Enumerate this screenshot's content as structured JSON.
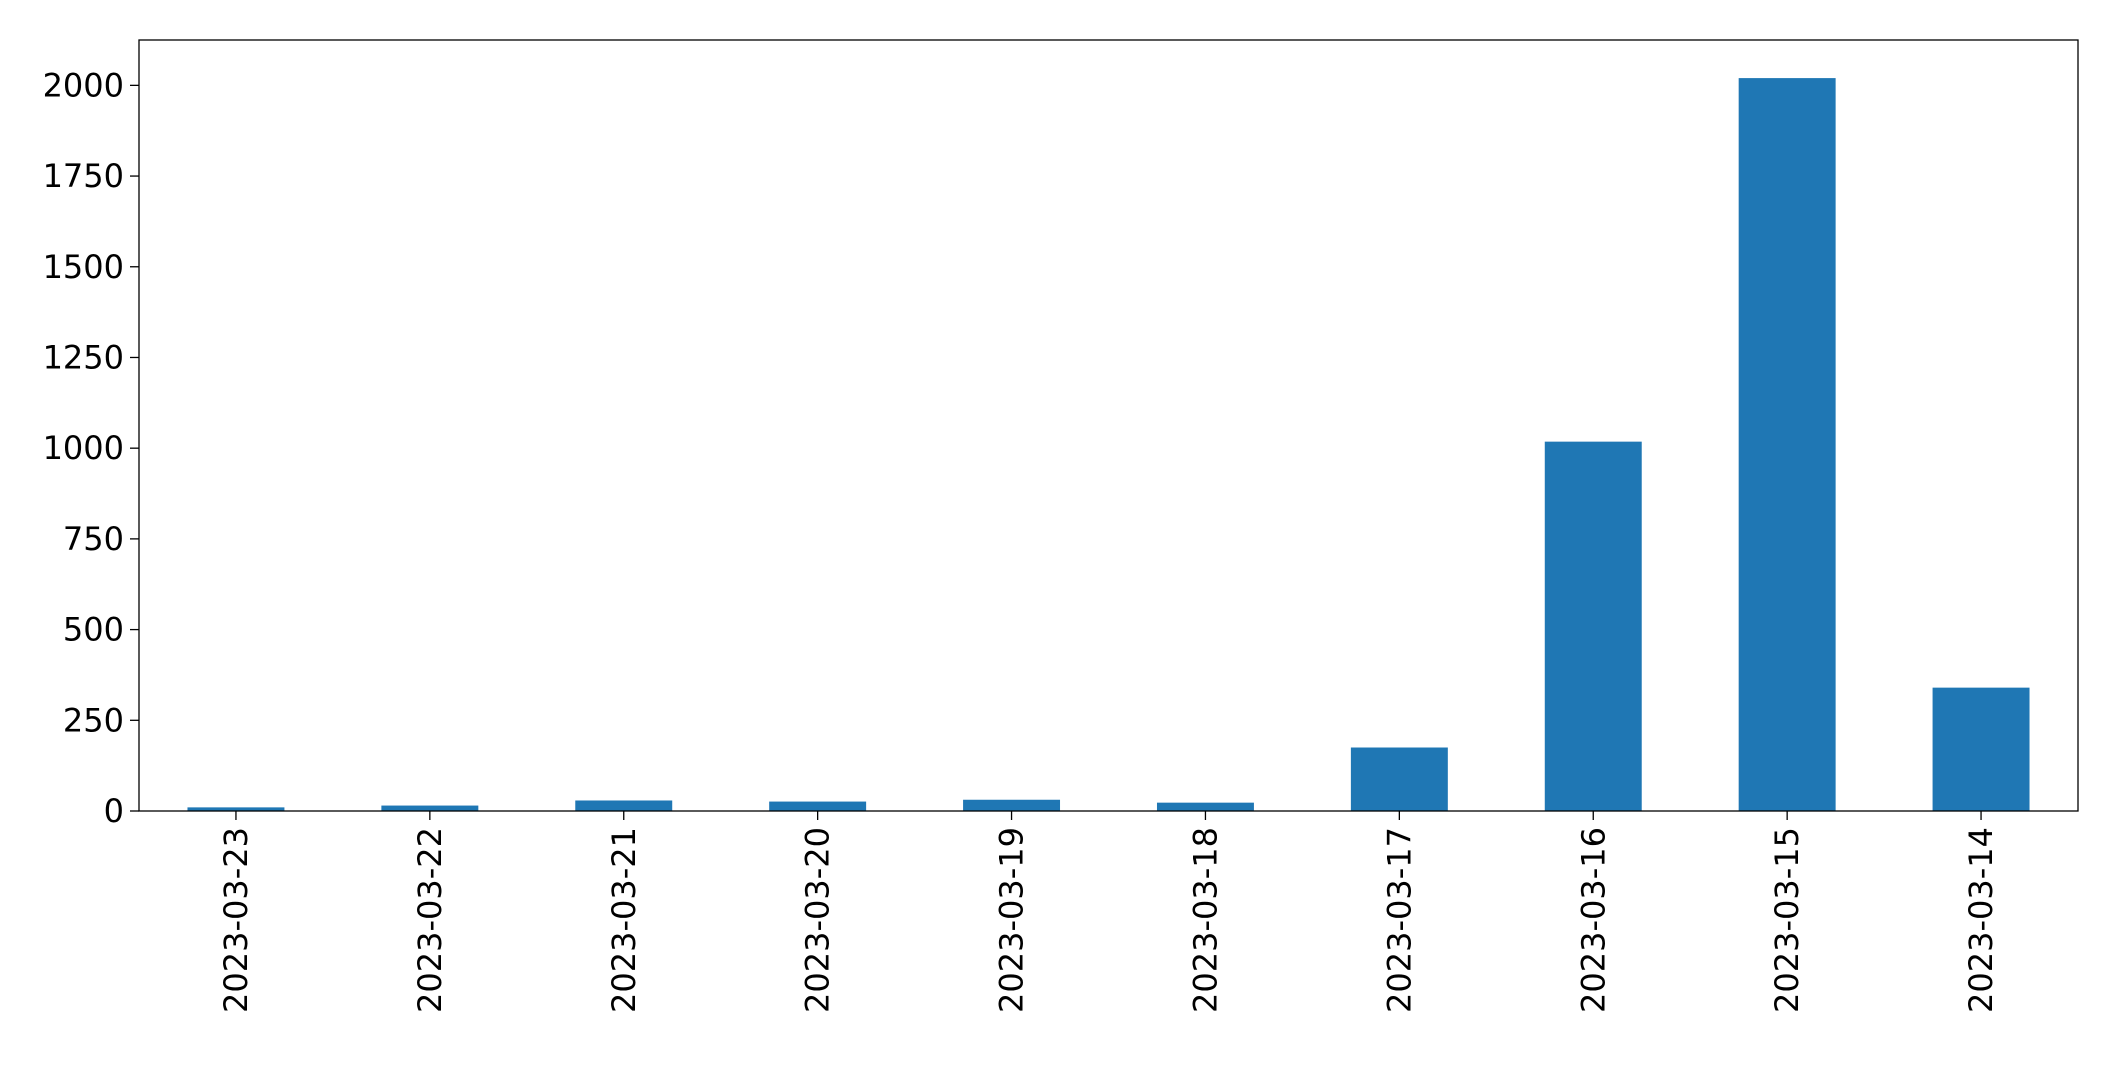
{
  "chart_data": {
    "type": "bar",
    "title": "",
    "xlabel": "",
    "ylabel": "",
    "categories": [
      "2023-03-23",
      "2023-03-22",
      "2023-03-21",
      "2023-03-20",
      "2023-03-19",
      "2023-03-18",
      "2023-03-17",
      "2023-03-16",
      "2023-03-15",
      "2023-03-14"
    ],
    "values": [
      10,
      15,
      29,
      26,
      31,
      23,
      175,
      1018,
      2020,
      340
    ],
    "ylim": [
      0,
      2125
    ],
    "yticks": [
      0,
      250,
      500,
      750,
      1000,
      1250,
      1500,
      1750,
      2000
    ],
    "bar_color": "#1f77b4",
    "grid": false,
    "legend": "none"
  }
}
